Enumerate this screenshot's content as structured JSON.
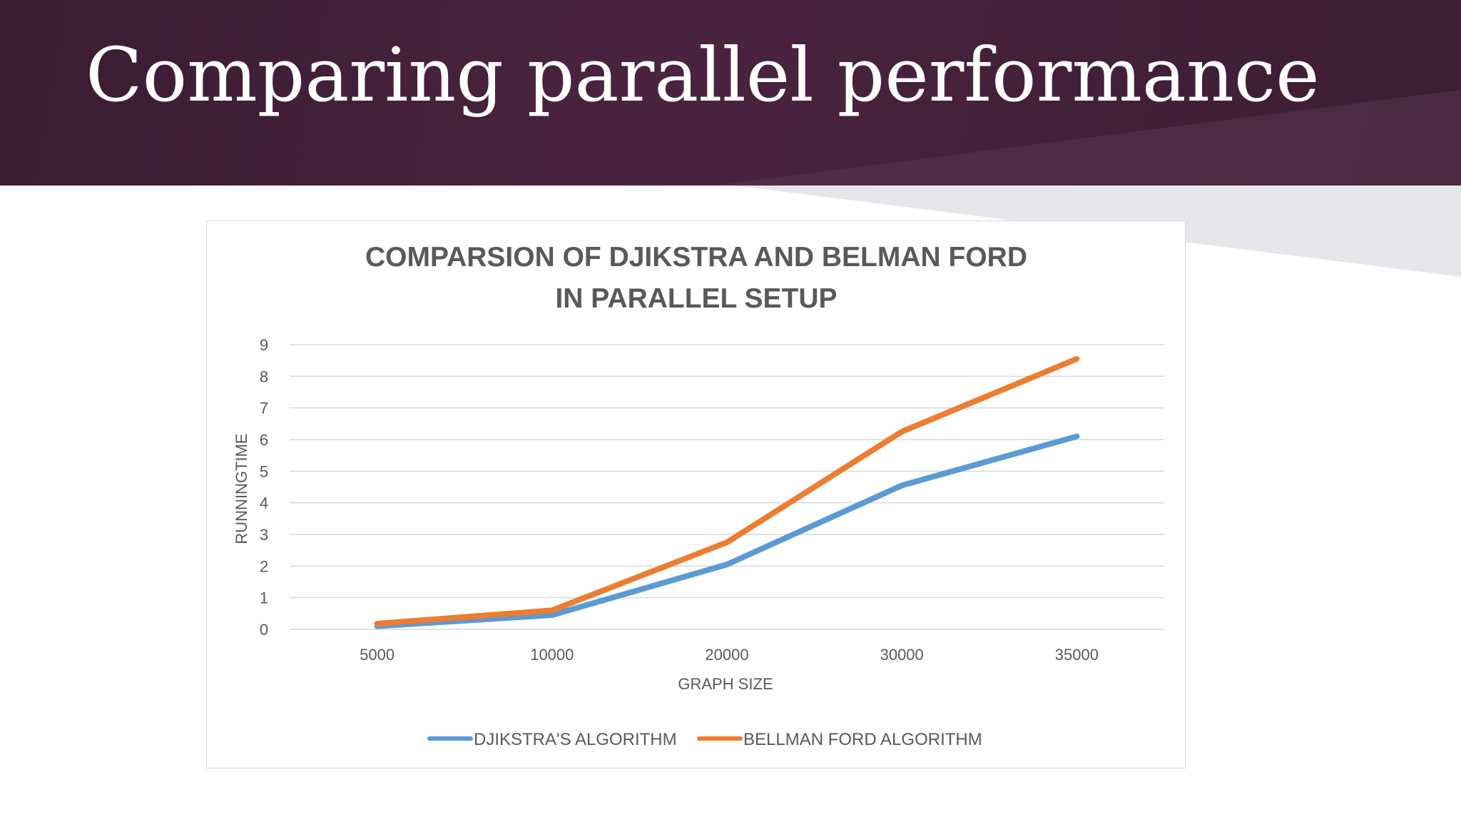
{
  "slide": {
    "title": "Comparing parallel performance"
  },
  "colors": {
    "header_band": "#3f1f38",
    "series_djikstra": "#5b9bd5",
    "series_bellman": "#ed7d31",
    "gridline": "#d9d9d9",
    "text_gray": "#595959"
  },
  "chart_data": {
    "type": "line",
    "title_lines": [
      "COMPARSION  OF DJIKSTRA AND BELMAN FORD",
      "IN PARALLEL SETUP"
    ],
    "xlabel": "GRAPH SIZE",
    "ylabel": "RUNNINGTIME",
    "categories": [
      "5000",
      "10000",
      "20000",
      "30000",
      "35000"
    ],
    "y_ticks": [
      "0",
      "1",
      "2",
      "3",
      "4",
      "5",
      "6",
      "7",
      "8",
      "9"
    ],
    "ylim": [
      0,
      9
    ],
    "grid": true,
    "legend_position": "bottom",
    "series": [
      {
        "name": "DJIKSTRA'S ALGORITHM",
        "color": "#5b9bd5",
        "values": [
          0.1,
          0.45,
          2.05,
          4.55,
          6.1
        ]
      },
      {
        "name": "BELLMAN FORD ALGORITHM",
        "color": "#ed7d31",
        "values": [
          0.18,
          0.6,
          2.75,
          6.25,
          8.55
        ]
      }
    ]
  }
}
